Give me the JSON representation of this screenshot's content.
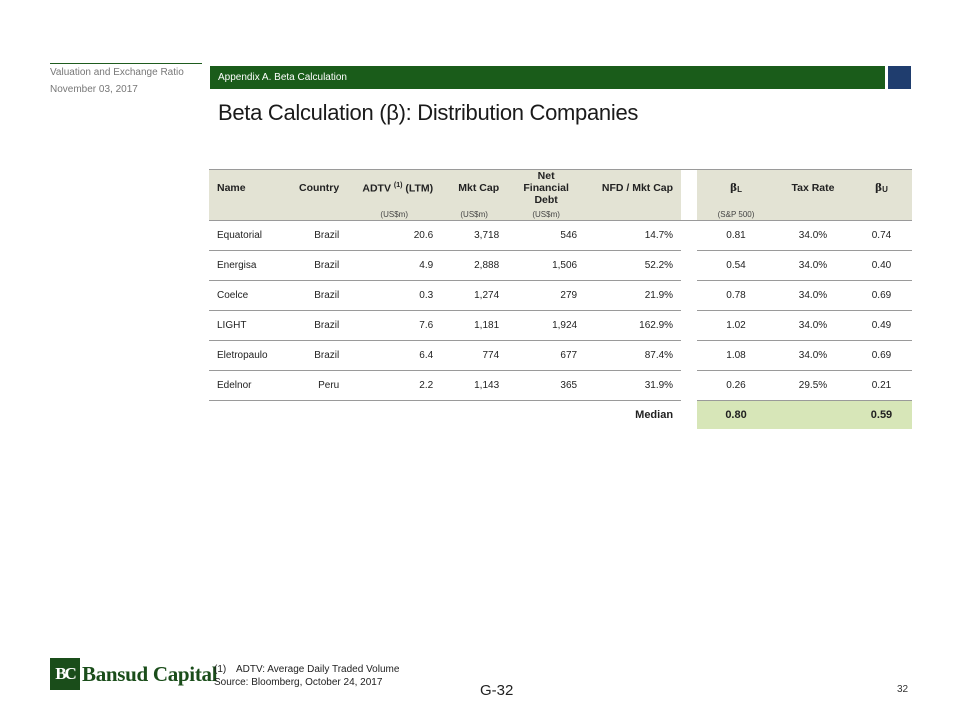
{
  "header": {
    "doc_title": "Valuation and Exchange Ratio",
    "doc_date": "November 03, 2017",
    "section": "Appendix A. Beta Calculation",
    "page_title": "Beta Calculation (β): Distribution Companies"
  },
  "table": {
    "headers": {
      "name": "Name",
      "country": "Country",
      "adtv": "ADTV",
      "adtv_note": "(1)",
      "adtv_suffix": "(LTM)",
      "mkt_cap": "Mkt Cap",
      "nfd_line1": "Net Financial",
      "nfd_line2": "Debt",
      "nfd_mkt": "NFD / Mkt Cap",
      "beta_l": "β",
      "beta_l_sub": "L",
      "tax_rate": "Tax Rate",
      "beta_u": "β",
      "beta_u_sub": "U"
    },
    "units": {
      "adtv": "(US$m)",
      "mkt_cap": "(US$m)",
      "nfd": "(US$m)",
      "beta_l": "(S&P 500)"
    },
    "rows": [
      {
        "name": "Equatorial",
        "country": "Brazil",
        "adtv": "20.6",
        "mkt_cap": "3,718",
        "nfd": "546",
        "nfd_mkt": "14.7%",
        "beta_l": "0.81",
        "tax": "34.0%",
        "beta_u": "0.74"
      },
      {
        "name": "Energisa",
        "country": "Brazil",
        "adtv": "4.9",
        "mkt_cap": "2,888",
        "nfd": "1,506",
        "nfd_mkt": "52.2%",
        "beta_l": "0.54",
        "tax": "34.0%",
        "beta_u": "0.40"
      },
      {
        "name": "Coelce",
        "country": "Brazil",
        "adtv": "0.3",
        "mkt_cap": "1,274",
        "nfd": "279",
        "nfd_mkt": "21.9%",
        "beta_l": "0.78",
        "tax": "34.0%",
        "beta_u": "0.69"
      },
      {
        "name": "LIGHT",
        "country": "Brazil",
        "adtv": "7.6",
        "mkt_cap": "1,181",
        "nfd": "1,924",
        "nfd_mkt": "162.9%",
        "beta_l": "1.02",
        "tax": "34.0%",
        "beta_u": "0.49"
      },
      {
        "name": "Eletropaulo",
        "country": "Brazil",
        "adtv": "6.4",
        "mkt_cap": "774",
        "nfd": "677",
        "nfd_mkt": "87.4%",
        "beta_l": "1.08",
        "tax": "34.0%",
        "beta_u": "0.69"
      },
      {
        "name": "Edelnor",
        "country": "Peru",
        "adtv": "2.2",
        "mkt_cap": "1,143",
        "nfd": "365",
        "nfd_mkt": "31.9%",
        "beta_l": "0.26",
        "tax": "29.5%",
        "beta_u": "0.21"
      }
    ],
    "median": {
      "label": "Median",
      "beta_l": "0.80",
      "beta_u": "0.59"
    }
  },
  "footer": {
    "footnote_num": "(1)",
    "footnote_text": "ADTV: Average Daily Traded Volume",
    "source": "Source: Bloomberg, October 24, 2017",
    "logo_mark": "BC",
    "logo_text": "Bansud Capital",
    "page_code": "G-32",
    "page_number": "32"
  },
  "colors": {
    "section_bar": "#1a5c1a",
    "accent_square": "#1f3d6e",
    "header_fill": "#e3e3d4",
    "median_fill": "#d7e6b8"
  }
}
